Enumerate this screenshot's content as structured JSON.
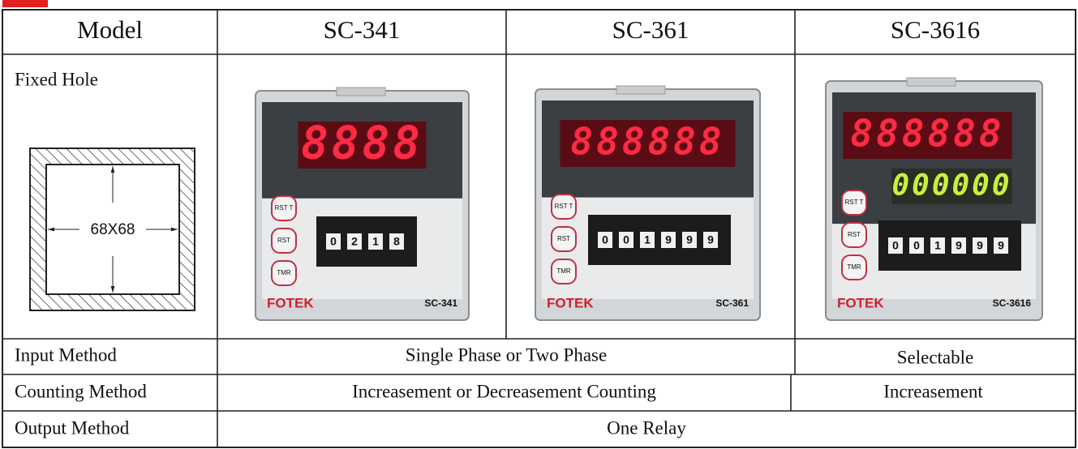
{
  "table": {
    "header": [
      "Model",
      "SC-341",
      "SC-361",
      "SC-3616"
    ],
    "fixed_hole": {
      "label": "Fixed Hole",
      "dimension": "68X68"
    },
    "products": [
      {
        "display": "8888",
        "thumbwheel": [
          "0",
          "2",
          "1",
          "8"
        ],
        "buttons": [
          "RST T",
          "RST",
          "TMR"
        ],
        "brand": "FOTEK",
        "model_label": "SC-341"
      },
      {
        "display": "888888",
        "thumbwheel": [
          "0",
          "0",
          "1",
          "9",
          "9",
          "9"
        ],
        "buttons": [
          "RST T",
          "RST",
          "TMR"
        ],
        "brand": "FOTEK",
        "model_label": "SC-361"
      },
      {
        "display": "888888",
        "display2": "000000",
        "thumbwheel": [
          "0",
          "0",
          "1",
          "9",
          "9",
          "9"
        ],
        "buttons": [
          "RST T",
          "RST",
          "TMR"
        ],
        "brand": "FOTEK",
        "model_label": "SC-3616"
      }
    ],
    "rows": [
      {
        "label": "Input Method",
        "cells": [
          "Single Phase or Two Phase",
          "Selectable"
        ]
      },
      {
        "label": "Counting Method",
        "cells": [
          "Increasement or Decreasement Counting",
          "Increasement"
        ]
      },
      {
        "label": "Output Method",
        "cells": [
          "One Relay"
        ]
      }
    ]
  }
}
